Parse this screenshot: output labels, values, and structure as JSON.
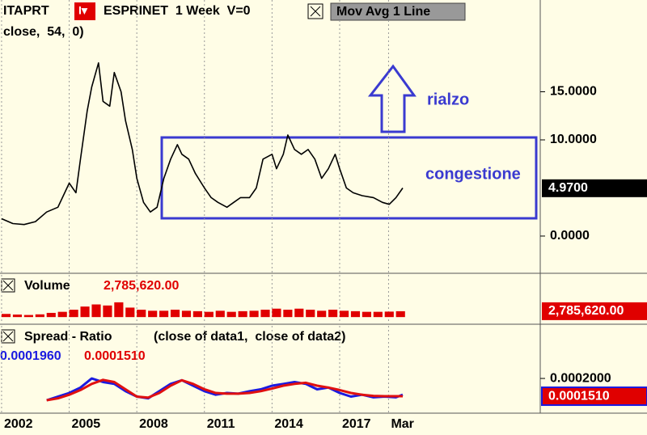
{
  "chart_data": [
    {
      "type": "line",
      "symbol": "ITAPRT",
      "menu": "I▾",
      "title": "ESPRINET  1 Week  V=0",
      "study": "Mov Avg 1 Line",
      "subtitle": "close,  54,  0)",
      "x": [
        2002.0,
        2002.5,
        2003.0,
        2003.5,
        2004.0,
        2004.5,
        2005.0,
        2005.3,
        2005.5,
        2005.8,
        2006.0,
        2006.3,
        2006.5,
        2006.8,
        2007.0,
        2007.3,
        2007.5,
        2007.8,
        2008.0,
        2008.3,
        2008.6,
        2008.9,
        2009.2,
        2009.5,
        2009.8,
        2010.0,
        2010.3,
        2010.6,
        2011.0,
        2011.3,
        2011.6,
        2012.0,
        2012.3,
        2012.6,
        2013.0,
        2013.3,
        2013.6,
        2014.0,
        2014.2,
        2014.5,
        2014.7,
        2015.0,
        2015.3,
        2015.6,
        2015.9,
        2016.2,
        2016.5,
        2016.8,
        2017.0,
        2017.3,
        2017.6,
        2018.0,
        2018.5,
        2018.9,
        2019.2,
        2019.5,
        2019.8
      ],
      "series": [
        {
          "color": "#000000",
          "values": [
            1.8,
            1.3,
            1.2,
            1.5,
            2.5,
            3.0,
            5.5,
            4.5,
            8.0,
            13.0,
            15.5,
            18.0,
            14.0,
            13.5,
            17.0,
            15.0,
            12.0,
            9.0,
            6.0,
            3.5,
            2.5,
            3.0,
            6.0,
            8.0,
            9.5,
            8.5,
            8.0,
            6.5,
            5.0,
            4.0,
            3.5,
            3.0,
            3.5,
            4.0,
            4.0,
            5.0,
            8.0,
            8.5,
            7.0,
            8.5,
            10.5,
            9.0,
            8.5,
            9.0,
            8.0,
            6.0,
            7.0,
            8.5,
            7.0,
            5.0,
            4.5,
            4.2,
            4.0,
            3.5,
            3.3,
            4.0,
            5.0
          ]
        }
      ],
      "current": {
        "value": 4.97,
        "label": "4.9700"
      },
      "xlim": [
        2001.93,
        2025.9
      ],
      "ylim": [
        -3.87,
        24.54
      ],
      "yticks": [
        {
          "value": 0,
          "label": "0.0000"
        },
        {
          "value": 10,
          "label": "10.0000"
        },
        {
          "value": 15,
          "label": "15.0000"
        }
      ],
      "annotations": [
        "rialzo",
        "congestione"
      ]
    },
    {
      "type": "bar",
      "title": "Volume",
      "current": {
        "value": 2785620,
        "label": "2,785,620.00"
      },
      "x": [
        2002.0,
        2002.5,
        2003.0,
        2003.5,
        2004.0,
        2004.5,
        2005.0,
        2005.5,
        2006.0,
        2006.5,
        2007.0,
        2007.5,
        2008.0,
        2008.5,
        2009.0,
        2009.5,
        2010.0,
        2010.5,
        2011.0,
        2011.5,
        2012.0,
        2012.5,
        2013.0,
        2013.5,
        2014.0,
        2014.5,
        2015.0,
        2015.5,
        2016.0,
        2016.5,
        2017.0,
        2017.5,
        2018.0,
        2018.5,
        2019.0,
        2019.5
      ],
      "color": "#e00000",
      "values": [
        1500000,
        1200000,
        1000000,
        1300000,
        2000000,
        2500000,
        3500000,
        5000000,
        6000000,
        5500000,
        7000000,
        4500000,
        3500000,
        3000000,
        3000000,
        3500000,
        3000000,
        2800000,
        2500000,
        3000000,
        2500000,
        2800000,
        3000000,
        3500000,
        4000000,
        3500000,
        4000000,
        3500000,
        3000000,
        3500000,
        3000000,
        2800000,
        2500000,
        2500000,
        2600000,
        2785620
      ],
      "xlim": [
        2001.93,
        2025.9
      ],
      "ylim": [
        -3000000,
        20000000
      ]
    },
    {
      "type": "line",
      "title": "Spread - Ratio",
      "subtitle": "(close of data1,  close of data2)",
      "x": [
        2004.0,
        2004.5,
        2005.0,
        2005.5,
        2006.0,
        2006.5,
        2007.0,
        2007.5,
        2008.0,
        2008.5,
        2009.0,
        2009.5,
        2010.0,
        2010.5,
        2011.0,
        2011.5,
        2012.0,
        2012.5,
        2013.0,
        2013.5,
        2014.0,
        2014.5,
        2015.0,
        2015.5,
        2016.0,
        2016.5,
        2017.0,
        2017.5,
        2018.0,
        2018.5,
        2019.0,
        2019.5,
        2019.8
      ],
      "series": [
        {
          "color": "#1a1ae0",
          "readout": {
            "value": 0.000196,
            "label": "0.0001960"
          },
          "values": [
            0.00014,
            0.00015,
            0.00016,
            0.000175,
            0.0002,
            0.00019,
            0.000185,
            0.000165,
            0.00015,
            0.000145,
            0.000165,
            0.000185,
            0.000195,
            0.00018,
            0.000165,
            0.000155,
            0.00016,
            0.000158,
            0.000165,
            0.00017,
            0.00018,
            0.000185,
            0.00019,
            0.000185,
            0.00017,
            0.000175,
            0.00016,
            0.00015,
            0.000155,
            0.000148,
            0.00015,
            0.000148,
            0.000155
          ]
        },
        {
          "color": "#e01010",
          "readout": {
            "value": 0.000151,
            "label": "0.0001510"
          },
          "values": [
            0.00014,
            0.000145,
            0.000155,
            0.000168,
            0.000185,
            0.000196,
            0.00019,
            0.00017,
            0.00015,
            0.000147,
            0.00016,
            0.00018,
            0.000195,
            0.000185,
            0.00017,
            0.00016,
            0.000158,
            0.000158,
            0.00016,
            0.000165,
            0.000172,
            0.00018,
            0.000185,
            0.000188,
            0.00018,
            0.000175,
            0.000168,
            0.00016,
            0.000155,
            0.000152,
            0.000151,
            0.000151,
            0.000151
          ]
        }
      ],
      "xlim": [
        2001.93,
        2025.9
      ],
      "ylim": [
        0.0001065,
        0.000345
      ],
      "yticks": [
        {
          "value": 0.0002,
          "label": "0.0002000"
        }
      ],
      "xticks": [
        2002,
        2005,
        2008,
        2011,
        2014,
        2017,
        {
          "value": 2019.17,
          "label": "Mar"
        }
      ]
    }
  ]
}
